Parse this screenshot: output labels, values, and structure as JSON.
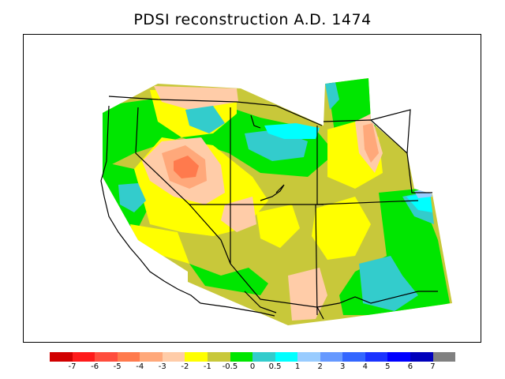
{
  "title": "PDSI reconstruction A.D. 1474",
  "colorbar": {
    "colors": [
      "#d10000",
      "#ff1a1a",
      "#ff4d3d",
      "#ff7a4d",
      "#ffa87a",
      "#ffcca8",
      "#ffff00",
      "#c8c83a",
      "#00e600",
      "#33cccc",
      "#00ffff",
      "#99ccff",
      "#6699ff",
      "#3366ff",
      "#1a33ff",
      "#0000ff",
      "#0000bb",
      "#808080"
    ],
    "tick_labels": [
      "-7",
      "-6",
      "-5",
      "-4",
      "-3",
      "-2",
      "-1",
      "-0.5",
      "0",
      "0.5",
      "1",
      "2",
      "3",
      "4",
      "5",
      "6",
      "7"
    ]
  },
  "map": {
    "colors": {
      "background": "#c8c83a",
      "green": "#00e600",
      "teal": "#33cccc",
      "cyan": "#00ffff",
      "light_blue": "#99ccff",
      "yellow": "#ffff00",
      "peach": "#ffcca8",
      "salmon": "#ffa87a",
      "orange": "#ff7a4d"
    }
  }
}
